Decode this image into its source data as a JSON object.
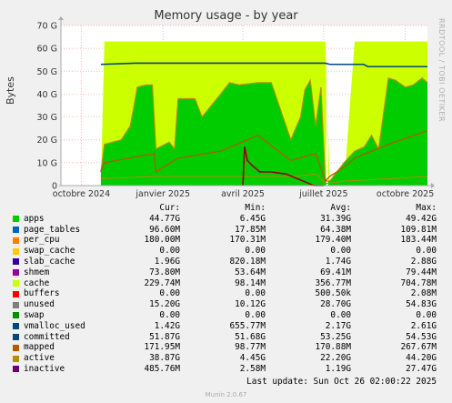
{
  "header": {
    "title": "Memory usage - by year",
    "ylabel": "Bytes",
    "side_text": "RRDTOOL / TOBI OETIKER"
  },
  "chart_data": {
    "type": "area",
    "title": "Memory usage - by year",
    "ylabel": "Bytes",
    "ylim": [
      0,
      70
    ],
    "yunit": "G",
    "y_ticks": [
      "0",
      "10 G",
      "20 G",
      "30 G",
      "40 G",
      "50 G",
      "60 G",
      "70 G"
    ],
    "x_ticks": [
      "octobre 2024",
      "janvier 2025",
      "avril 2025",
      "juillet 2025",
      "octobre 2025"
    ],
    "x_tick_dates": [
      "2024-10-01",
      "2025-01-01",
      "2025-04-01",
      "2025-07-01",
      "2025-10-01"
    ],
    "x_range": [
      "2024-09-08",
      "2025-10-26"
    ],
    "grid": true,
    "series": [
      {
        "name": "apps",
        "color": "#00cc00",
        "x": [
          "2024-10-23",
          "2024-10-27",
          "2024-11-15",
          "2024-11-25",
          "2024-11-29",
          "2024-12-03",
          "2024-12-13",
          "2024-12-20",
          "2024-12-24",
          "2025-01-08",
          "2025-01-14",
          "2025-01-18",
          "2025-01-25",
          "2025-02-06",
          "2025-02-14",
          "2025-03-07",
          "2025-03-17",
          "2025-03-28",
          "2025-04-18",
          "2025-05-03",
          "2025-05-25",
          "2025-06-05",
          "2025-06-10",
          "2025-06-16",
          "2025-06-22",
          "2025-06-28",
          "2025-07-03",
          "2025-07-08",
          "2025-07-24",
          "2025-08-05",
          "2025-08-16",
          "2025-08-24",
          "2025-09-01",
          "2025-09-12",
          "2025-09-20",
          "2025-10-01",
          "2025-10-10",
          "2025-10-20",
          "2025-10-26"
        ],
        "values": [
          6,
          18,
          20,
          26,
          34,
          43,
          44,
          44,
          16,
          19,
          16,
          38,
          38,
          38,
          30,
          40,
          45,
          44,
          45,
          45,
          20,
          30,
          42,
          46,
          26,
          43,
          2,
          2,
          10,
          15,
          17,
          22,
          16,
          47,
          46,
          43,
          44,
          47,
          45
        ]
      },
      {
        "name": "page_tables",
        "color": "#0066b3",
        "values": []
      },
      {
        "name": "per_cpu",
        "color": "#ff8000",
        "values": []
      },
      {
        "name": "swap_cache",
        "color": "#ffcc00",
        "values": []
      },
      {
        "name": "slab_cache",
        "color": "#330099",
        "values": []
      },
      {
        "name": "shmem",
        "color": "#990099",
        "values": []
      },
      {
        "name": "cache",
        "color": "#ccff00",
        "x": [
          "2024-10-23",
          "2024-10-27",
          "2024-12-24",
          "2025-01-18",
          "2025-03-07",
          "2025-04-18",
          "2025-05-25",
          "2025-06-22",
          "2025-07-03",
          "2025-07-08",
          "2025-07-24",
          "2025-08-05",
          "2025-09-12",
          "2025-10-26"
        ],
        "values": [
          0,
          63,
          63,
          63,
          63,
          63,
          63,
          63,
          63,
          0,
          0,
          63,
          63,
          63
        ]
      },
      {
        "name": "buffers",
        "color": "#ff0000",
        "x": [
          "2025-04-01",
          "2025-04-03",
          "2025-04-06",
          "2025-04-11",
          "2025-04-20",
          "2025-05-03",
          "2025-05-20",
          "2025-06-20",
          "2025-07-01"
        ],
        "values": [
          0,
          17,
          11,
          9,
          6,
          6,
          5,
          0,
          0
        ]
      },
      {
        "name": "unused",
        "color": "#808080",
        "values": []
      },
      {
        "name": "swap",
        "color": "#008f00",
        "values": []
      },
      {
        "name": "vmalloc_used",
        "color": "#00487d",
        "values": []
      },
      {
        "name": "committed",
        "color": "#00487d",
        "x": [
          "2024-10-23",
          "2024-12-01",
          "2025-07-03",
          "2025-07-08",
          "2025-08-15",
          "2025-08-20",
          "2025-10-26"
        ],
        "values": [
          53,
          53.5,
          53.5,
          53,
          53,
          52,
          52
        ]
      },
      {
        "name": "mapped",
        "color": "#b35a00",
        "x": [
          "2024-10-23",
          "2024-10-27",
          "2024-12-22",
          "2024-12-24",
          "2025-01-18",
          "2025-03-07",
          "2025-04-18",
          "2025-05-25",
          "2025-06-22",
          "2025-07-03",
          "2025-07-08",
          "2025-07-24",
          "2025-08-05",
          "2025-09-12",
          "2025-10-26"
        ],
        "values": [
          6,
          10,
          14,
          6,
          12,
          15,
          22,
          11,
          14,
          2,
          4,
          8,
          12,
          18,
          24
        ]
      },
      {
        "name": "active",
        "color": "#b38f00",
        "x": [
          "2024-10-23",
          "2024-12-24",
          "2025-04-01",
          "2025-05-25",
          "2025-06-22",
          "2025-07-03",
          "2025-07-08",
          "2025-07-24",
          "2025-09-12",
          "2025-10-26"
        ],
        "values": [
          3,
          4,
          4,
          4,
          5,
          1,
          1,
          2,
          3,
          4
        ]
      },
      {
        "name": "inactive",
        "color": "#6b006b",
        "values": []
      }
    ]
  },
  "legend": {
    "headers": [
      "Cur:",
      "Min:",
      "Avg:",
      "Max:"
    ],
    "rows": [
      {
        "name": "apps",
        "color": "#00cc00",
        "cur": "44.77G",
        "min": "6.45G",
        "avg": "31.39G",
        "max": "49.42G"
      },
      {
        "name": "page_tables",
        "color": "#0066b3",
        "cur": "96.60M",
        "min": "17.85M",
        "avg": "64.38M",
        "max": "109.81M"
      },
      {
        "name": "per_cpu",
        "color": "#ff8000",
        "cur": "180.00M",
        "min": "170.31M",
        "avg": "179.40M",
        "max": "183.44M"
      },
      {
        "name": "swap_cache",
        "color": "#ffcc00",
        "cur": "0.00",
        "min": "0.00",
        "avg": "0.00",
        "max": "0.00"
      },
      {
        "name": "slab_cache",
        "color": "#330099",
        "cur": "1.96G",
        "min": "820.18M",
        "avg": "1.74G",
        "max": "2.88G"
      },
      {
        "name": "shmem",
        "color": "#990099",
        "cur": "73.80M",
        "min": "53.64M",
        "avg": "69.41M",
        "max": "79.44M"
      },
      {
        "name": "cache",
        "color": "#ccff00",
        "cur": "229.74M",
        "min": "98.14M",
        "avg": "356.77M",
        "max": "704.78M"
      },
      {
        "name": "buffers",
        "color": "#ff0000",
        "cur": "0.00",
        "min": "0.00",
        "avg": "500.50k",
        "max": "2.08M"
      },
      {
        "name": "unused",
        "color": "#808080",
        "cur": "15.20G",
        "min": "10.12G",
        "avg": "28.70G",
        "max": "54.83G"
      },
      {
        "name": "swap",
        "color": "#008f00",
        "cur": "0.00",
        "min": "0.00",
        "avg": "0.00",
        "max": "0.00"
      },
      {
        "name": "vmalloc_used",
        "color": "#00487d",
        "cur": "1.42G",
        "min": "655.77M",
        "avg": "2.17G",
        "max": "2.61G"
      },
      {
        "name": "committed",
        "color": "#00487d",
        "cur": "51.87G",
        "min": "51.68G",
        "avg": "53.25G",
        "max": "54.53G"
      },
      {
        "name": "mapped",
        "color": "#b35a00",
        "cur": "171.95M",
        "min": "98.77M",
        "avg": "170.88M",
        "max": "267.67M"
      },
      {
        "name": "active",
        "color": "#b38f00",
        "cur": "38.87G",
        "min": "4.45G",
        "avg": "22.20G",
        "max": "44.20G"
      },
      {
        "name": "inactive",
        "color": "#6b006b",
        "cur": "485.76M",
        "min": "2.58M",
        "avg": "1.19G",
        "max": "27.47G"
      }
    ]
  },
  "footer": {
    "last_update": "Last update: Sun Oct 26 02:00:22 2025",
    "generator": "Munin 2.0.67"
  }
}
